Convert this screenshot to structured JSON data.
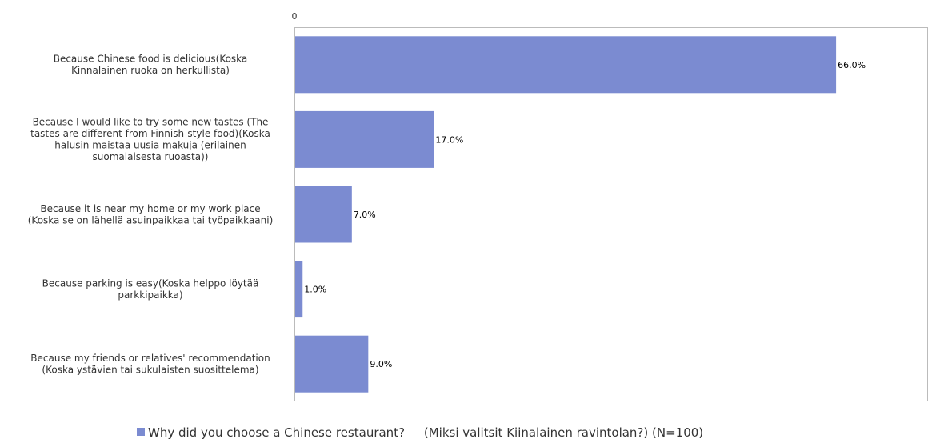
{
  "chart_data": {
    "type": "bar",
    "orientation": "horizontal",
    "categories": [
      [
        "Because Chinese food is delicious(Koska",
        "Kinnalainen ruoka on herkullista)"
      ],
      [
        "Because I would like to try some new tastes (The",
        "tastes are different from Finnish-style food)(Koska",
        "halusin maistaa uusia makuja (erilainen",
        "suomalaisesta ruoasta))"
      ],
      [
        "Because it is near my home or my work place",
        "(Koska se on lähellä asuinpaikkaa tai työpaikkaani)"
      ],
      [
        "Because parking is easy(Koska helppo löytää",
        "parkkipaikka)"
      ],
      [
        "Because my friends or relatives' recommendation",
        "(Koska ystävien tai sukulaisten suosittelema)"
      ]
    ],
    "series": [
      {
        "name": "Why did you choose a Chinese restaurant?     (Miksi valitsit Kiinalainen ravintolan?) (N=100)",
        "values": [
          66.0,
          17.0,
          7.0,
          1.0,
          9.0
        ],
        "labels": [
          "66.0%",
          "17.0%",
          "7.0%",
          "1.0%",
          "9.0%"
        ],
        "color": "#7b8bd1"
      }
    ],
    "x_ticks": [
      "0"
    ],
    "xlim": [
      0,
      77.2
    ],
    "grid": false,
    "legend_position": "bottom-center"
  }
}
